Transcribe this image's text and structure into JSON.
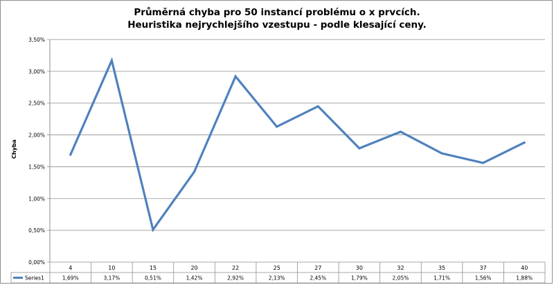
{
  "chart_data": {
    "type": "line",
    "title_lines": [
      "Průměrná chyba pro 50 instancí problému o x prvcích.",
      "Heuristika nejrychlejšího vzestupu - podle klesající ceny."
    ],
    "xlabel": "",
    "ylabel": "Chyba",
    "ylim": [
      0,
      3.5
    ],
    "yticks": [
      "0,00%",
      "0,50%",
      "1,00%",
      "1,50%",
      "2,00%",
      "2,50%",
      "3,00%",
      "3,50%"
    ],
    "categories": [
      "4",
      "10",
      "15",
      "20",
      "22",
      "25",
      "27",
      "30",
      "32",
      "35",
      "37",
      "40"
    ],
    "series": [
      {
        "name": "Series1",
        "values": [
          1.69,
          3.17,
          0.51,
          1.42,
          2.92,
          2.13,
          2.45,
          1.79,
          2.05,
          1.71,
          1.56,
          1.88
        ],
        "labels": [
          "1,69%",
          "3,17%",
          "0,51%",
          "1,42%",
          "2,92%",
          "2,13%",
          "2,45%",
          "1,79%",
          "2,05%",
          "1,71%",
          "1,56%",
          "1,88%"
        ],
        "color": "#4f81bd"
      }
    ],
    "grid": true,
    "legend": "data-table"
  },
  "colors": {
    "gridline": "#8e8e8e",
    "axis": "#8e8e8e",
    "text": "#000000",
    "series1": "#4f81bd"
  }
}
